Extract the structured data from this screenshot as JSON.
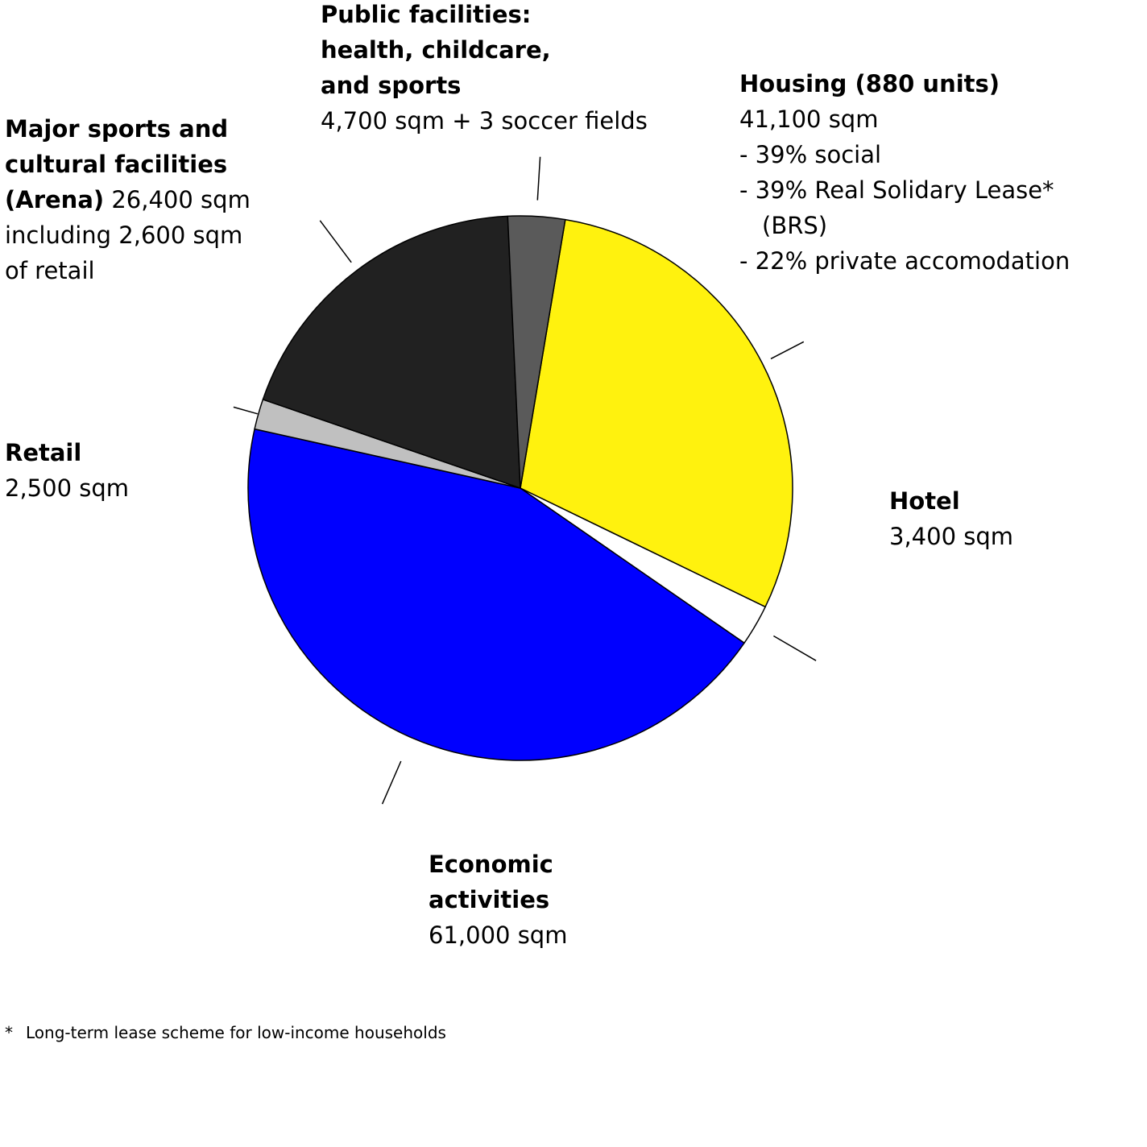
{
  "chart_data": {
    "type": "pie",
    "unit": "sqm",
    "slices": [
      {
        "key": "housing",
        "label": "Housing (880 units)",
        "value": 41100,
        "value_text": "41,100 sqm",
        "color": "#fff20e",
        "details": [
          "- 39% social",
          "- 39% Real Solidary Lease*",
          "(BRS)",
          "- 22% private accomodation"
        ]
      },
      {
        "key": "hotel",
        "label": "Hotel",
        "value": 3400,
        "value_text": "3,400 sqm",
        "color": "#ffffff"
      },
      {
        "key": "econ",
        "label": "Economic activities",
        "label_lines": [
          "Economic",
          "activities"
        ],
        "value": 61000,
        "value_text": "61,000 sqm",
        "color": "#0000ff"
      },
      {
        "key": "retail",
        "label": "Retail",
        "value": 2500,
        "value_text": "2,500 sqm",
        "color": "#c0c0c0"
      },
      {
        "key": "arena",
        "label": "Major sports and cultural facilities (Arena)",
        "label_lines": [
          "Major sports and",
          "cultural facilities",
          "(Arena)"
        ],
        "value": 26400,
        "value_text": "26,400 sqm",
        "extra_lines": [
          "including 2,600 sqm",
          "of retail"
        ],
        "color": "#212121"
      },
      {
        "key": "public",
        "label": "Public facilities: health, childcare, and sports",
        "label_lines": [
          "Public facilities:",
          "health, childcare,",
          "and sports"
        ],
        "value": 4700,
        "value_text": "4,700 sqm + 3 soccer fields",
        "color": "#5a5a5a"
      }
    ]
  },
  "footnote": {
    "marker": "*",
    "text": "Long-term lease scheme for low-income households"
  }
}
